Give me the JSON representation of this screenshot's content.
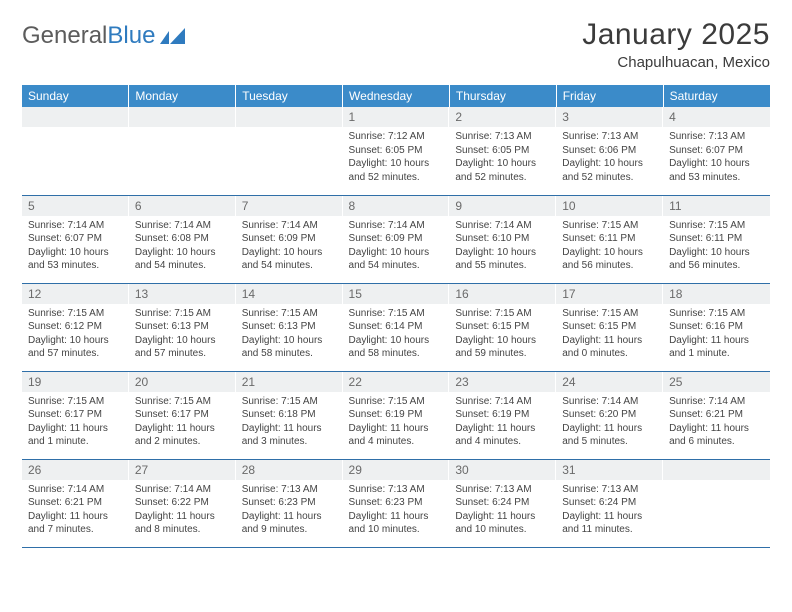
{
  "logo": {
    "text1": "General",
    "text2": "Blue"
  },
  "header": {
    "title": "January 2025",
    "location": "Chapulhuacan, Mexico"
  },
  "colors": {
    "header_bg": "#3b8bc9",
    "header_text": "#ffffff",
    "daynum_bg": "#eef0f1",
    "daynum_text": "#6a6a6a",
    "rule": "#2f6fa8",
    "body_text": "#444444",
    "logo_gray": "#5c5c5c",
    "logo_blue": "#2f7bbf"
  },
  "typography": {
    "title_fontsize": 30,
    "location_fontsize": 15,
    "dayheader_fontsize": 12,
    "daynum_fontsize": 12,
    "body_fontsize": 10
  },
  "day_headers": [
    "Sunday",
    "Monday",
    "Tuesday",
    "Wednesday",
    "Thursday",
    "Friday",
    "Saturday"
  ],
  "weeks": [
    [
      null,
      null,
      null,
      {
        "n": "1",
        "sunrise": "7:12 AM",
        "sunset": "6:05 PM",
        "daylight": "10 hours and 52 minutes."
      },
      {
        "n": "2",
        "sunrise": "7:13 AM",
        "sunset": "6:05 PM",
        "daylight": "10 hours and 52 minutes."
      },
      {
        "n": "3",
        "sunrise": "7:13 AM",
        "sunset": "6:06 PM",
        "daylight": "10 hours and 52 minutes."
      },
      {
        "n": "4",
        "sunrise": "7:13 AM",
        "sunset": "6:07 PM",
        "daylight": "10 hours and 53 minutes."
      }
    ],
    [
      {
        "n": "5",
        "sunrise": "7:14 AM",
        "sunset": "6:07 PM",
        "daylight": "10 hours and 53 minutes."
      },
      {
        "n": "6",
        "sunrise": "7:14 AM",
        "sunset": "6:08 PM",
        "daylight": "10 hours and 54 minutes."
      },
      {
        "n": "7",
        "sunrise": "7:14 AM",
        "sunset": "6:09 PM",
        "daylight": "10 hours and 54 minutes."
      },
      {
        "n": "8",
        "sunrise": "7:14 AM",
        "sunset": "6:09 PM",
        "daylight": "10 hours and 54 minutes."
      },
      {
        "n": "9",
        "sunrise": "7:14 AM",
        "sunset": "6:10 PM",
        "daylight": "10 hours and 55 minutes."
      },
      {
        "n": "10",
        "sunrise": "7:15 AM",
        "sunset": "6:11 PM",
        "daylight": "10 hours and 56 minutes."
      },
      {
        "n": "11",
        "sunrise": "7:15 AM",
        "sunset": "6:11 PM",
        "daylight": "10 hours and 56 minutes."
      }
    ],
    [
      {
        "n": "12",
        "sunrise": "7:15 AM",
        "sunset": "6:12 PM",
        "daylight": "10 hours and 57 minutes."
      },
      {
        "n": "13",
        "sunrise": "7:15 AM",
        "sunset": "6:13 PM",
        "daylight": "10 hours and 57 minutes."
      },
      {
        "n": "14",
        "sunrise": "7:15 AM",
        "sunset": "6:13 PM",
        "daylight": "10 hours and 58 minutes."
      },
      {
        "n": "15",
        "sunrise": "7:15 AM",
        "sunset": "6:14 PM",
        "daylight": "10 hours and 58 minutes."
      },
      {
        "n": "16",
        "sunrise": "7:15 AM",
        "sunset": "6:15 PM",
        "daylight": "10 hours and 59 minutes."
      },
      {
        "n": "17",
        "sunrise": "7:15 AM",
        "sunset": "6:15 PM",
        "daylight": "11 hours and 0 minutes."
      },
      {
        "n": "18",
        "sunrise": "7:15 AM",
        "sunset": "6:16 PM",
        "daylight": "11 hours and 1 minute."
      }
    ],
    [
      {
        "n": "19",
        "sunrise": "7:15 AM",
        "sunset": "6:17 PM",
        "daylight": "11 hours and 1 minute."
      },
      {
        "n": "20",
        "sunrise": "7:15 AM",
        "sunset": "6:17 PM",
        "daylight": "11 hours and 2 minutes."
      },
      {
        "n": "21",
        "sunrise": "7:15 AM",
        "sunset": "6:18 PM",
        "daylight": "11 hours and 3 minutes."
      },
      {
        "n": "22",
        "sunrise": "7:15 AM",
        "sunset": "6:19 PM",
        "daylight": "11 hours and 4 minutes."
      },
      {
        "n": "23",
        "sunrise": "7:14 AM",
        "sunset": "6:19 PM",
        "daylight": "11 hours and 4 minutes."
      },
      {
        "n": "24",
        "sunrise": "7:14 AM",
        "sunset": "6:20 PM",
        "daylight": "11 hours and 5 minutes."
      },
      {
        "n": "25",
        "sunrise": "7:14 AM",
        "sunset": "6:21 PM",
        "daylight": "11 hours and 6 minutes."
      }
    ],
    [
      {
        "n": "26",
        "sunrise": "7:14 AM",
        "sunset": "6:21 PM",
        "daylight": "11 hours and 7 minutes."
      },
      {
        "n": "27",
        "sunrise": "7:14 AM",
        "sunset": "6:22 PM",
        "daylight": "11 hours and 8 minutes."
      },
      {
        "n": "28",
        "sunrise": "7:13 AM",
        "sunset": "6:23 PM",
        "daylight": "11 hours and 9 minutes."
      },
      {
        "n": "29",
        "sunrise": "7:13 AM",
        "sunset": "6:23 PM",
        "daylight": "11 hours and 10 minutes."
      },
      {
        "n": "30",
        "sunrise": "7:13 AM",
        "sunset": "6:24 PM",
        "daylight": "11 hours and 10 minutes."
      },
      {
        "n": "31",
        "sunrise": "7:13 AM",
        "sunset": "6:24 PM",
        "daylight": "11 hours and 11 minutes."
      },
      null
    ]
  ],
  "labels": {
    "sunrise": "Sunrise:",
    "sunset": "Sunset:",
    "daylight": "Daylight:"
  }
}
